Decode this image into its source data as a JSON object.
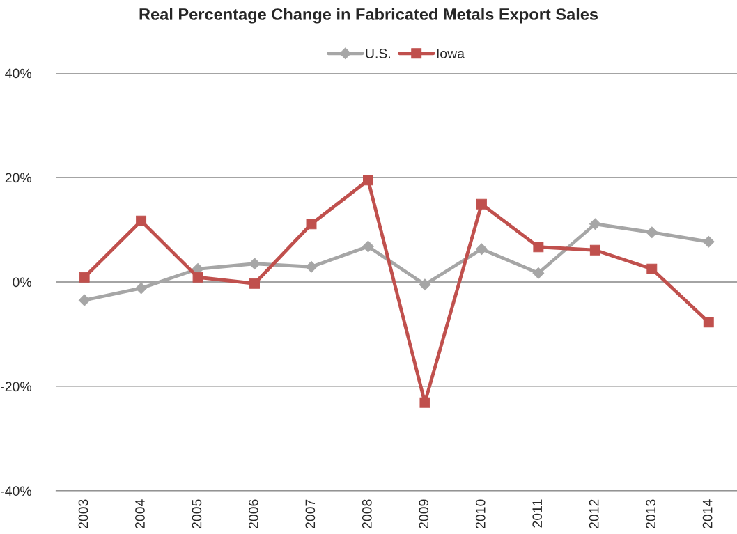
{
  "chart_data": {
    "type": "line",
    "title": "Real Percentage Change in Fabricated Metals Export Sales",
    "categories": [
      "2003",
      "2004",
      "2005",
      "2006",
      "2007",
      "2008",
      "2009",
      "2010",
      "2011",
      "2012",
      "2013",
      "2014"
    ],
    "series": [
      {
        "name": "U.S.",
        "color": "#a6a6a6",
        "marker": "diamond",
        "values": [
          -3.5,
          -1.2,
          2.5,
          3.5,
          2.9,
          6.8,
          -0.5,
          6.3,
          1.7,
          11.1,
          9.5,
          7.7
        ]
      },
      {
        "name": "Iowa",
        "color": "#c0504d",
        "marker": "square",
        "values": [
          0.9,
          11.7,
          0.9,
          -0.3,
          11.1,
          19.5,
          -23.1,
          14.9,
          6.7,
          6.1,
          2.5,
          -7.7
        ]
      }
    ],
    "ylim": [
      -40,
      40
    ],
    "yticks": [
      {
        "value": -40,
        "label": "-40%"
      },
      {
        "value": -20,
        "label": "-20%"
      },
      {
        "value": 0,
        "label": "0%"
      },
      {
        "value": 20,
        "label": "20%"
      },
      {
        "value": 40,
        "label": "40%"
      }
    ],
    "grid": "y",
    "legend": "top",
    "line_style": "solid"
  }
}
